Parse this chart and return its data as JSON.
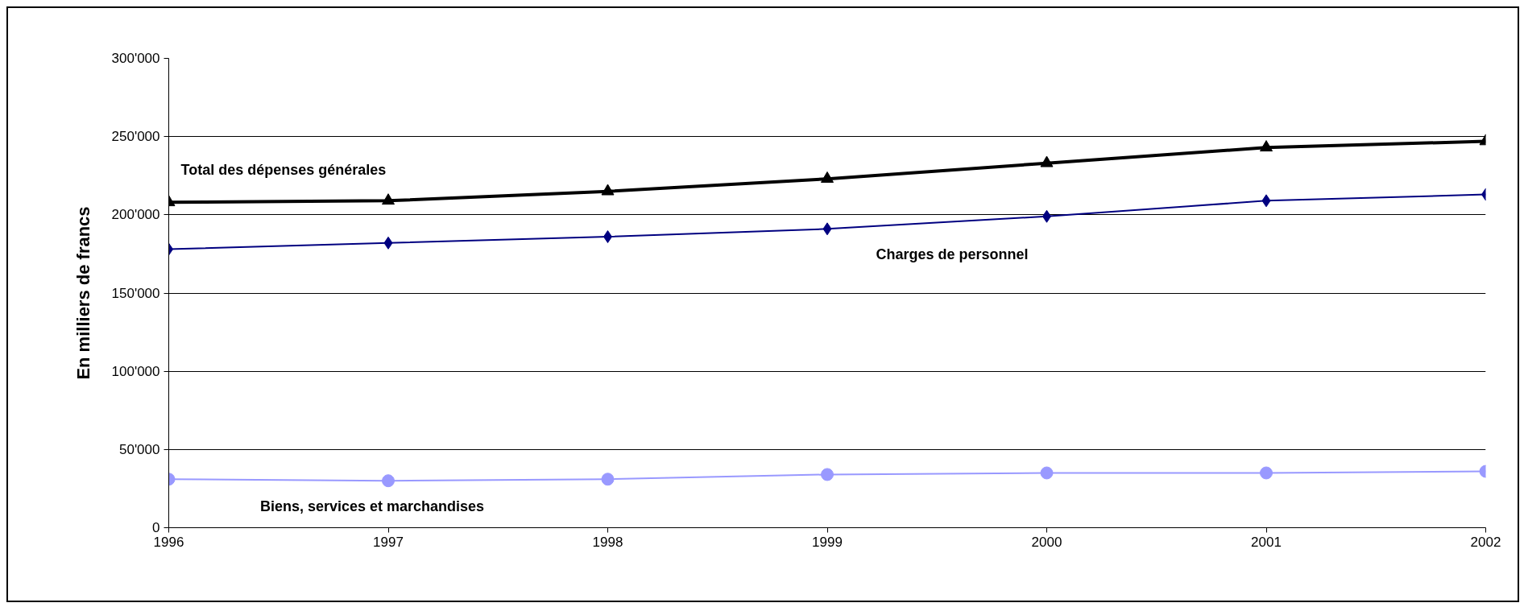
{
  "chart_data": {
    "type": "line",
    "ylabel": "En milliers de francs",
    "x": [
      1996,
      1997,
      1998,
      1999,
      2000,
      2001,
      2002
    ],
    "series": [
      {
        "name": "Total des dépenses générales",
        "color": "#000000",
        "marker": "triangle",
        "values": [
          208000,
          209000,
          215000,
          223000,
          233000,
          243000,
          247000
        ]
      },
      {
        "name": "Charges  de  personnel",
        "color": "#000080",
        "marker": "diamond",
        "values": [
          178000,
          182000,
          186000,
          191000,
          199000,
          209000,
          213000
        ]
      },
      {
        "name": "Biens, services et marchandises",
        "color": "#9999ff",
        "marker": "circle",
        "values": [
          31000,
          30000,
          31000,
          34000,
          35000,
          35000,
          36000
        ]
      }
    ],
    "xlim": [
      1996,
      2002
    ],
    "xticks": [
      1996,
      1997,
      1998,
      1999,
      2000,
      2001,
      2002
    ],
    "ylim": [
      0,
      300000
    ],
    "yticks": [
      {
        "value": 0,
        "label": "0"
      },
      {
        "value": 50000,
        "label": "50'000"
      },
      {
        "value": 100000,
        "label": "100'000"
      },
      {
        "value": 150000,
        "label": "150'000"
      },
      {
        "value": 200000,
        "label": "200'000"
      },
      {
        "value": 250000,
        "label": "250'000"
      },
      {
        "value": 300000,
        "label": "300'000"
      }
    ],
    "grid": "y",
    "legend": false
  }
}
